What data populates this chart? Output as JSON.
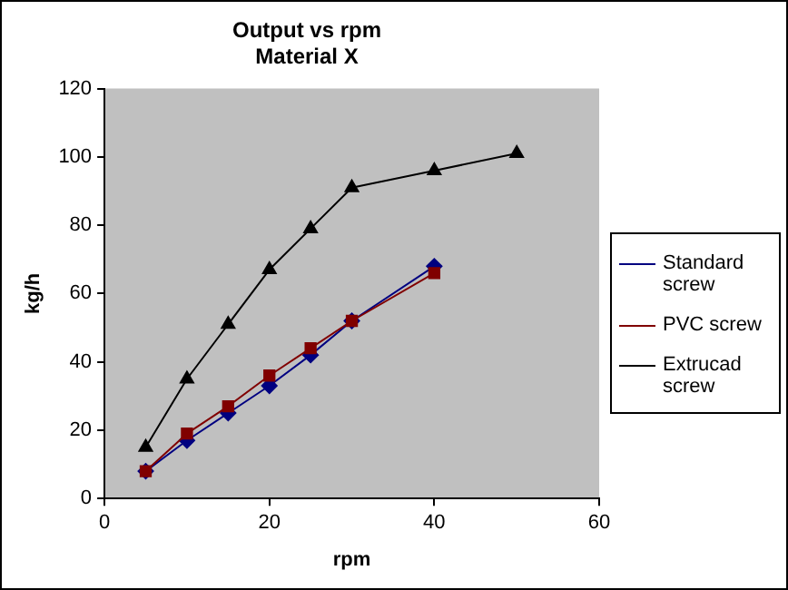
{
  "chart_data": {
    "type": "line",
    "title": "Output vs rpm",
    "subtitle": "Material X",
    "xlabel": "rpm",
    "ylabel": "kg/h",
    "xlim": [
      0,
      60
    ],
    "xticks": [
      0,
      20,
      40,
      60
    ],
    "ylim": [
      0,
      120
    ],
    "yticks": [
      0,
      20,
      40,
      60,
      80,
      100,
      120
    ],
    "grid": false,
    "legend": "right",
    "series": [
      {
        "name": "Standard screw",
        "color": "#000080",
        "marker": "diamond",
        "x": [
          5,
          10,
          15,
          20,
          25,
          30,
          40
        ],
        "values": [
          8,
          17,
          25,
          33,
          42,
          52,
          68
        ]
      },
      {
        "name": "PVC screw",
        "color": "#800000",
        "marker": "square",
        "x": [
          5,
          10,
          15,
          20,
          25,
          30,
          40
        ],
        "values": [
          8,
          19,
          27,
          36,
          44,
          52,
          66
        ]
      },
      {
        "name": "Extrucad screw",
        "color": "#000000",
        "marker": "triangle",
        "x": [
          5,
          10,
          15,
          20,
          25,
          30,
          40,
          50
        ],
        "values": [
          15,
          35,
          51,
          67,
          79,
          91,
          96,
          101
        ]
      }
    ]
  }
}
